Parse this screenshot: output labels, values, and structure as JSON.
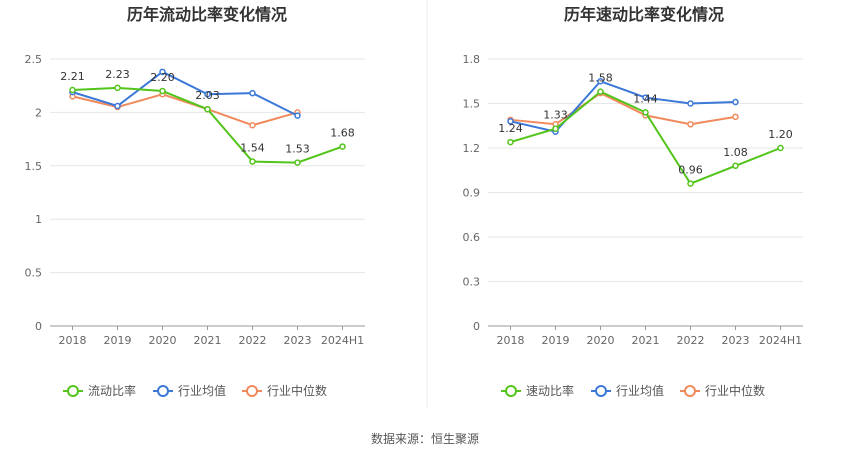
{
  "footer": {
    "source": "数据来源：恒生聚源"
  },
  "colors": {
    "company": "#52c41a",
    "industry_avg": "#3b78d8",
    "industry_median": "#f08a5d",
    "grid": "#e6e6e6",
    "axis_text": "#666666"
  },
  "chart_data": [
    {
      "type": "line",
      "title": "历年流动比率变化情况",
      "categories": [
        "2018",
        "2019",
        "2020",
        "2021",
        "2022",
        "2023",
        "2024H1"
      ],
      "ylim": [
        0,
        2.5
      ],
      "yticks": [
        0,
        0.5,
        1,
        1.5,
        2,
        2.5
      ],
      "ytick_labels": [
        "0",
        "0.5",
        "1",
        "1.5",
        "2",
        "2.5"
      ],
      "grid": true,
      "legend_position": "bottom",
      "series": [
        {
          "name": "流动比率",
          "color_key": "company",
          "values": [
            2.21,
            2.23,
            2.2,
            2.03,
            1.54,
            1.53,
            1.68
          ],
          "labels": [
            "2.21",
            "2.23",
            "2.20",
            "2.03",
            "1.54",
            "1.53",
            "1.68"
          ]
        },
        {
          "name": "行业均值",
          "color_key": "industry_avg",
          "values": [
            2.19,
            2.06,
            2.38,
            2.17,
            2.18,
            1.97,
            null
          ]
        },
        {
          "name": "行业中位数",
          "color_key": "industry_median",
          "values": [
            2.15,
            2.05,
            2.17,
            2.03,
            1.88,
            2.0,
            null
          ]
        }
      ]
    },
    {
      "type": "line",
      "title": "历年速动比率变化情况",
      "categories": [
        "2018",
        "2019",
        "2020",
        "2021",
        "2022",
        "2023",
        "2024H1"
      ],
      "ylim": [
        0,
        1.8
      ],
      "yticks": [
        0,
        0.3,
        0.6,
        0.9,
        1.2,
        1.5,
        1.8
      ],
      "ytick_labels": [
        "0",
        "0.3",
        "0.6",
        "0.9",
        "1.2",
        "1.5",
        "1.8"
      ],
      "grid": true,
      "legend_position": "bottom",
      "series": [
        {
          "name": "速动比率",
          "color_key": "company",
          "values": [
            1.24,
            1.33,
            1.58,
            1.44,
            0.96,
            1.08,
            1.2
          ],
          "labels": [
            "1.24",
            "1.33",
            "1.58",
            "1.44",
            "0.96",
            "1.08",
            "1.20"
          ]
        },
        {
          "name": "行业均值",
          "color_key": "industry_avg",
          "values": [
            1.38,
            1.31,
            1.65,
            1.54,
            1.5,
            1.51,
            null
          ]
        },
        {
          "name": "行业中位数",
          "color_key": "industry_median",
          "values": [
            1.39,
            1.36,
            1.57,
            1.42,
            1.36,
            1.41,
            null
          ]
        }
      ]
    }
  ]
}
